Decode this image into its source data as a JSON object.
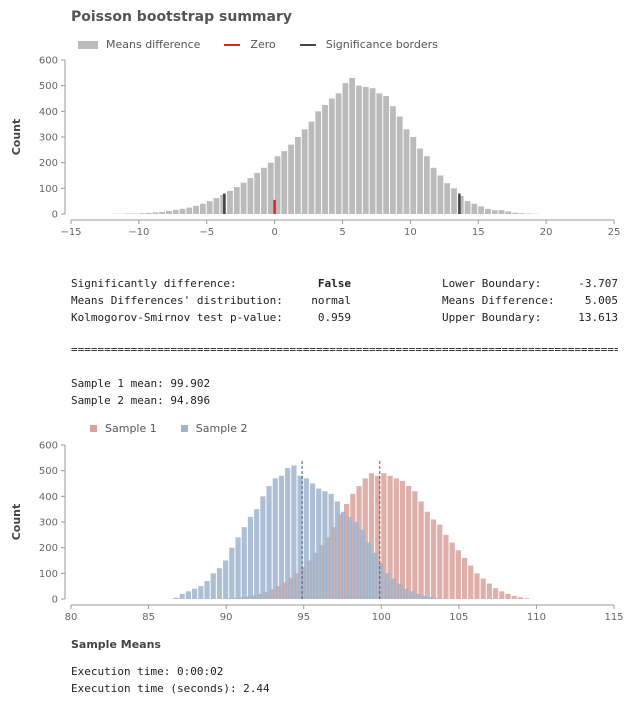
{
  "title": "Poisson bootstrap summary",
  "legend_top": [
    {
      "label": "Means difference",
      "kind": "rect",
      "color": "#bbbbbb"
    },
    {
      "label": "Zero",
      "kind": "line",
      "color": "#d62728"
    },
    {
      "label": "Significance borders",
      "kind": "line",
      "color": "#444444"
    }
  ],
  "stats": {
    "sig_label": "Significantly difference:",
    "sig_value": "False",
    "dist_label": "Means Differences' distribution:",
    "dist_value": "normal",
    "ks_label": "Kolmogorov-Smirnov test p-value:",
    "ks_value": "0.959",
    "lower_label": "Lower Boundary:",
    "lower_value": "-3.707",
    "meandiff_label": "Means Difference:",
    "meandiff_value": "5.005",
    "upper_label": "Upper Boundary:",
    "upper_value": "13.613"
  },
  "separator": "============================================================================================",
  "sample1_mean": "Sample 1 mean: 99.902",
  "sample2_mean": "Sample 2 mean: 94.896",
  "legend_bottom": [
    {
      "label": "Sample 1",
      "color": "#d9a19b"
    },
    {
      "label": "Sample 2",
      "color": "#9fb4cc"
    }
  ],
  "bottom_xlabel": "Sample Means",
  "exec_time": "Execution time: 0:00:02",
  "exec_seconds": "Execution time (seconds): 2.44",
  "chart_data": [
    {
      "type": "bar",
      "title": "Poisson bootstrap summary",
      "xlabel": "",
      "ylabel": "Count",
      "xlim": [
        -15,
        25
      ],
      "ylim": [
        0,
        600
      ],
      "xticks": [
        -15,
        -10,
        -5,
        0,
        5,
        10,
        15,
        20,
        25
      ],
      "yticks": [
        0,
        100,
        200,
        300,
        400,
        500,
        600
      ],
      "grid": false,
      "legend": "top-left",
      "bin_width": 0.5,
      "series": [
        {
          "name": "Means difference",
          "color": "#bbbbbb",
          "x": [
            -11.75,
            -11.25,
            -10.75,
            -10.25,
            -9.75,
            -9.25,
            -8.75,
            -8.25,
            -7.75,
            -7.25,
            -6.75,
            -6.25,
            -5.75,
            -5.25,
            -4.75,
            -4.25,
            -3.75,
            -3.25,
            -2.75,
            -2.25,
            -1.75,
            -1.25,
            -0.75,
            -0.25,
            0.25,
            0.75,
            1.25,
            1.75,
            2.25,
            2.75,
            3.25,
            3.75,
            4.25,
            4.75,
            5.25,
            5.75,
            6.25,
            6.75,
            7.25,
            7.75,
            8.25,
            8.75,
            9.25,
            9.75,
            10.25,
            10.75,
            11.25,
            11.75,
            12.25,
            12.75,
            13.25,
            13.75,
            14.25,
            14.75,
            15.25,
            15.75,
            16.25,
            16.75,
            17.25,
            17.75,
            18.25,
            18.75,
            19.25
          ],
          "values": [
            1,
            1,
            2,
            2,
            3,
            4,
            6,
            8,
            12,
            16,
            20,
            25,
            32,
            40,
            50,
            62,
            75,
            90,
            105,
            122,
            140,
            160,
            180,
            200,
            225,
            245,
            270,
            300,
            330,
            360,
            400,
            425,
            450,
            470,
            510,
            530,
            500,
            495,
            490,
            470,
            460,
            420,
            380,
            330,
            300,
            255,
            225,
            180,
            150,
            120,
            100,
            70,
            50,
            40,
            30,
            20,
            15,
            15,
            10,
            5,
            3,
            2,
            1
          ]
        },
        {
          "name": "Zero",
          "color": "#d62728",
          "marker_x": 0,
          "marker_height": 55
        },
        {
          "name": "Significance borders",
          "color": "#444444",
          "marker_x": [
            -3.707,
            13.613
          ],
          "marker_height": 80
        }
      ]
    },
    {
      "type": "bar",
      "xlabel": "Sample Means",
      "ylabel": "Count",
      "xlim": [
        80,
        115
      ],
      "ylim": [
        0,
        600
      ],
      "xticks": [
        80,
        85,
        90,
        95,
        100,
        105,
        110,
        115
      ],
      "yticks": [
        0,
        100,
        200,
        300,
        400,
        500,
        600
      ],
      "grid": false,
      "legend": "top-left",
      "bin_width": 0.4,
      "series": [
        {
          "name": "Sample 1",
          "color": "#d9a19b",
          "mean": 99.902,
          "x": [
            90.2,
            90.6,
            91.0,
            91.4,
            91.8,
            92.2,
            92.6,
            93.0,
            93.4,
            93.8,
            94.2,
            94.6,
            95.0,
            95.4,
            95.8,
            96.2,
            96.6,
            97.0,
            97.4,
            97.8,
            98.2,
            98.6,
            99.0,
            99.4,
            99.8,
            100.2,
            100.6,
            101.0,
            101.4,
            101.8,
            102.2,
            102.6,
            103.0,
            103.4,
            103.8,
            104.2,
            104.6,
            105.0,
            105.4,
            105.8,
            106.2,
            106.6,
            107.0,
            107.4,
            107.8,
            108.2,
            108.6,
            109.0,
            109.4
          ],
          "values": [
            2,
            4,
            6,
            10,
            14,
            20,
            28,
            38,
            50,
            65,
            82,
            100,
            125,
            150,
            180,
            210,
            240,
            280,
            330,
            370,
            410,
            440,
            470,
            490,
            480,
            490,
            480,
            470,
            460,
            440,
            420,
            380,
            340,
            310,
            290,
            250,
            220,
            190,
            160,
            130,
            100,
            80,
            60,
            42,
            30,
            20,
            12,
            7,
            3
          ]
        },
        {
          "name": "Sample 2",
          "color": "#9fb4cc",
          "mean": 94.896,
          "x": [
            86.8,
            87.2,
            87.6,
            88.0,
            88.4,
            88.8,
            89.2,
            89.6,
            90.0,
            90.4,
            90.8,
            91.2,
            91.6,
            92.0,
            92.4,
            92.8,
            93.2,
            93.6,
            94.0,
            94.4,
            94.8,
            95.2,
            95.6,
            96.0,
            96.4,
            96.8,
            97.2,
            97.6,
            98.0,
            98.4,
            98.8,
            99.2,
            99.6,
            100.0,
            100.4,
            100.8,
            101.2,
            101.6,
            102.0,
            102.4,
            102.8,
            103.2,
            103.6
          ],
          "values": [
            5,
            20,
            30,
            40,
            50,
            70,
            100,
            120,
            150,
            200,
            240,
            280,
            320,
            350,
            400,
            440,
            470,
            480,
            510,
            520,
            480,
            470,
            450,
            430,
            420,
            410,
            380,
            340,
            320,
            300,
            270,
            220,
            180,
            140,
            100,
            80,
            60,
            40,
            30,
            20,
            12,
            8,
            3
          ]
        }
      ]
    }
  ]
}
